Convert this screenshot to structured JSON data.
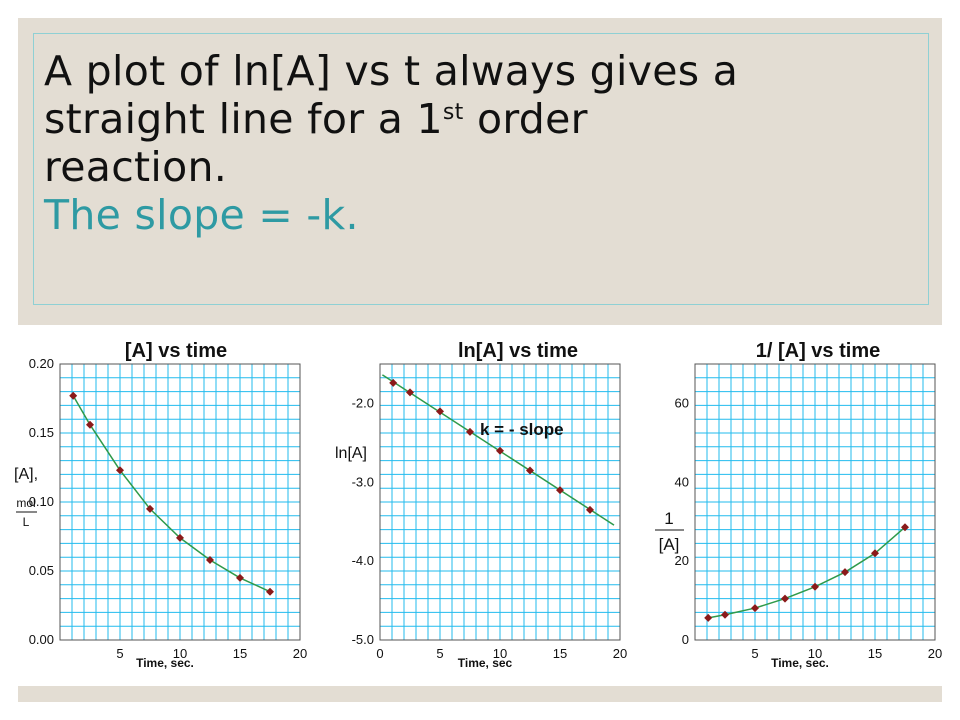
{
  "slide": {
    "line1": "A plot of ln[A] vs t always gives a",
    "line2_pre": "straight line for a 1",
    "line2_sup": "st",
    "line2_post": " order",
    "line3": "reaction.",
    "line4": "The slope = -k.",
    "accent_color": "#2e9aa3"
  },
  "colors": {
    "grid": "#22bbee",
    "marker": "#8b1a1a",
    "line": "#2f9a4a"
  },
  "chart_data": [
    {
      "type": "line",
      "title": "[A]  vs time",
      "xlabel": "Time, sec.",
      "ylabel_top": "[A],",
      "ylabel_num": "mol",
      "ylabel_den": "L",
      "xlim": [
        0,
        20
      ],
      "ylim": [
        0.0,
        0.2
      ],
      "xticks": [
        5,
        10,
        15,
        20
      ],
      "yticks": [
        0.0,
        0.05,
        0.1,
        0.15,
        0.2
      ],
      "ytick_labels": [
        "0.00",
        "0.05",
        "0.10",
        "0.15",
        "0.20"
      ],
      "series": [
        {
          "x": [
            1.1,
            2.5,
            5,
            7.5,
            10,
            12.5,
            15,
            17.5
          ],
          "y": [
            0.177,
            0.156,
            0.123,
            0.095,
            0.074,
            0.058,
            0.045,
            0.035
          ]
        }
      ]
    },
    {
      "type": "line",
      "title": "ln[A] vs time",
      "xlabel": "Time, sec",
      "ylabel": "ln[A]",
      "annotation": "k = - slope",
      "xlim": [
        0,
        20
      ],
      "ylim": [
        -5.0,
        -1.5
      ],
      "xticks": [
        0,
        5,
        10,
        15,
        20
      ],
      "yticks": [
        -2.0,
        -3.0,
        -4.0,
        -5.0
      ],
      "ytick_labels": [
        "-2.0",
        "-3.0",
        "-4.0",
        "-5.0"
      ],
      "series": [
        {
          "x": [
            1.1,
            2.5,
            5,
            7.5,
            10,
            12.5,
            15,
            17.5
          ],
          "y": [
            -1.74,
            -1.86,
            -2.1,
            -2.36,
            -2.6,
            -2.85,
            -3.1,
            -3.35
          ]
        }
      ]
    },
    {
      "type": "line",
      "title": "1/ [A] vs time",
      "xlabel": "Time, sec.",
      "ylabel_num": "1",
      "ylabel_den": "[A]",
      "xlim": [
        0,
        20
      ],
      "ylim": [
        0,
        70
      ],
      "xticks": [
        5,
        10,
        15,
        20
      ],
      "yticks": [
        0,
        20,
        40,
        60
      ],
      "ytick_labels": [
        "0",
        "20",
        "40",
        "60"
      ],
      "series": [
        {
          "x": [
            1.1,
            2.5,
            5,
            7.5,
            10,
            12.5,
            15,
            17.5
          ],
          "y": [
            5.6,
            6.4,
            8.1,
            10.5,
            13.5,
            17.2,
            22.0,
            28.6
          ]
        }
      ]
    }
  ]
}
